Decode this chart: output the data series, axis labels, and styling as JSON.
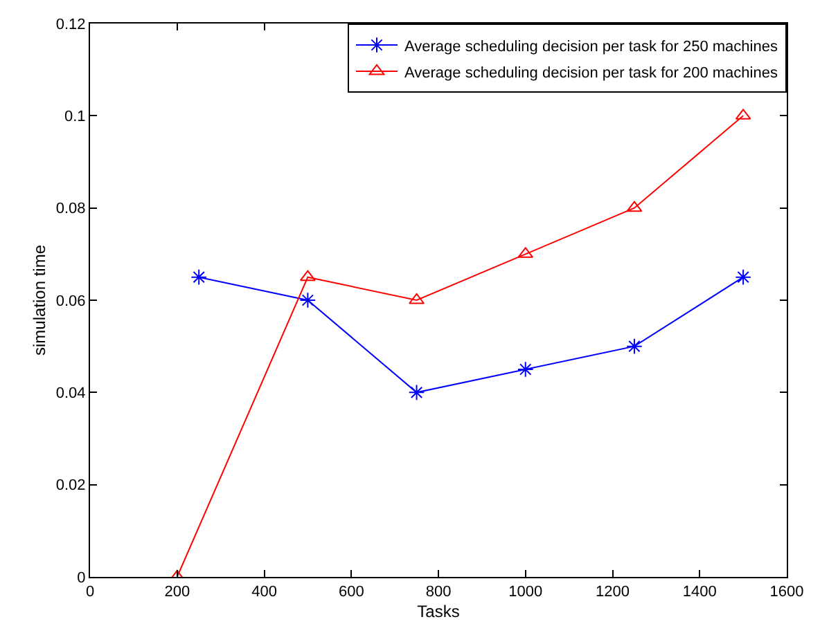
{
  "chart_data": {
    "type": "line",
    "xlabel": "Tasks",
    "ylabel": "simulation time",
    "xlim": [
      0,
      1600
    ],
    "xticks": [
      0,
      200,
      400,
      600,
      800,
      1000,
      1200,
      1400,
      1600
    ],
    "ylim": [
      0,
      0.12
    ],
    "yticks": [
      0,
      0.02,
      0.04,
      0.06,
      0.08,
      0.1,
      0.12
    ],
    "grid": false,
    "legend": "top right",
    "series": [
      {
        "name": "Average scheduling decision per task for 250 machines",
        "color": "#0000ff",
        "marker": "cross",
        "x": [
          250,
          500,
          750,
          1000,
          1250,
          1500
        ],
        "values": [
          0.065,
          0.06,
          0.04,
          0.045,
          0.05,
          0.065
        ]
      },
      {
        "name": "Average scheduling decision per task for 200 machines",
        "color": "#ff0000",
        "marker": "triangle",
        "x": [
          200,
          500,
          750,
          1000,
          1250,
          1500
        ],
        "values": [
          0,
          0.065,
          0.06,
          0.07,
          0.08,
          0.1
        ]
      }
    ]
  }
}
